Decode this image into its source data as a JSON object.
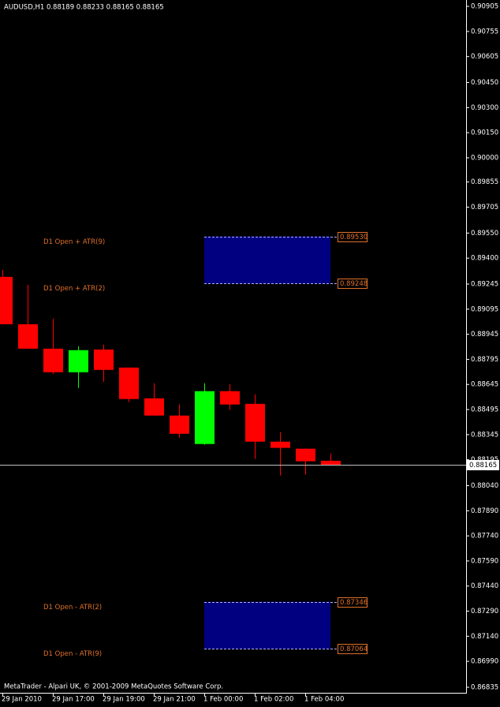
{
  "chart_data": {
    "type": "candlestick",
    "title": "AUDUSD,H1  0.88189 0.88233 0.88165 0.88165",
    "footer": "MetaTrader - Alpari UK, © 2001-2009 MetaQuotes Software Corp.",
    "categories": [
      "29 Jan 2010",
      null,
      "29 Jan 17:00",
      null,
      "29 Jan 19:00",
      null,
      "29 Jan 21:00",
      null,
      "1 Feb 00:00",
      null,
      "1 Feb 02:00",
      null,
      "1 Feb 04:00",
      null
    ],
    "open": [
      0.89288,
      0.89005,
      0.88859,
      0.88718,
      0.88854,
      0.88746,
      0.88562,
      0.88459,
      0.88289,
      0.88605,
      0.88529,
      0.88303,
      0.88261,
      0.88189
    ],
    "high": [
      0.8933,
      0.89241,
      0.89038,
      0.88873,
      0.88883,
      0.88746,
      0.88652,
      0.88525,
      0.88652,
      0.88647,
      0.88586,
      0.8836,
      0.88261,
      0.88233
    ],
    "low": [
      0.89005,
      0.88859,
      0.88708,
      0.88624,
      0.88661,
      0.88539,
      0.88459,
      0.88327,
      0.88285,
      0.88492,
      0.882,
      0.88101,
      0.88105,
      0.88165
    ],
    "close": [
      0.89005,
      0.88859,
      0.88718,
      0.8885,
      0.88732,
      0.88558,
      0.88459,
      0.8835,
      0.88605,
      0.88525,
      0.88303,
      0.88266,
      0.88186,
      0.88165
    ],
    "up_color": "#00ff00",
    "down_color": "#ff0000",
    "ylim": [
      0.86802,
      0.90943
    ],
    "yticks": [
      0.90905,
      0.90755,
      0.90605,
      {
        "value": 0.9045,
        "label": "0.90450"
      },
      {
        "value": 0.903,
        "label": "0.90300"
      },
      {
        "value": 0.9015,
        "label": "0.90150"
      },
      {
        "value": 0.9,
        "label": "0.90000"
      },
      0.89855,
      0.89705,
      {
        "value": 0.8955,
        "label": "0.89550"
      },
      {
        "value": 0.894,
        "label": "0.89400"
      },
      0.89245,
      0.89095,
      0.88945,
      0.88795,
      0.88645,
      0.88495,
      0.88345,
      0.88195,
      {
        "value": 0.8804,
        "label": "0.88040"
      },
      {
        "value": 0.8789,
        "label": "0.87890"
      },
      {
        "value": 0.8774,
        "label": "0.87740"
      },
      {
        "value": 0.8759,
        "label": "0.87590"
      },
      {
        "value": 0.8744,
        "label": "0.87440"
      },
      {
        "value": 0.8729,
        "label": "0.87290"
      },
      {
        "value": 0.8714,
        "label": "0.87140"
      },
      {
        "value": 0.8699,
        "label": "0.86990"
      },
      0.86835
    ],
    "levels": [
      {
        "name": "D1 Open + ATR(9)",
        "value": 0.8953,
        "label": "0.89530"
      },
      {
        "name": "D1 Open + ATR(2)",
        "value": 0.89248,
        "label": "0.89248"
      },
      {
        "name": "D1 Open - ATR(2)",
        "value": 0.87346,
        "label": "0.87346"
      },
      {
        "name": "D1 Open - ATR(9)",
        "value": 0.87064,
        "label": "0.87064"
      }
    ],
    "zone_color": "#000080",
    "level_color": "#e0702a"
  }
}
